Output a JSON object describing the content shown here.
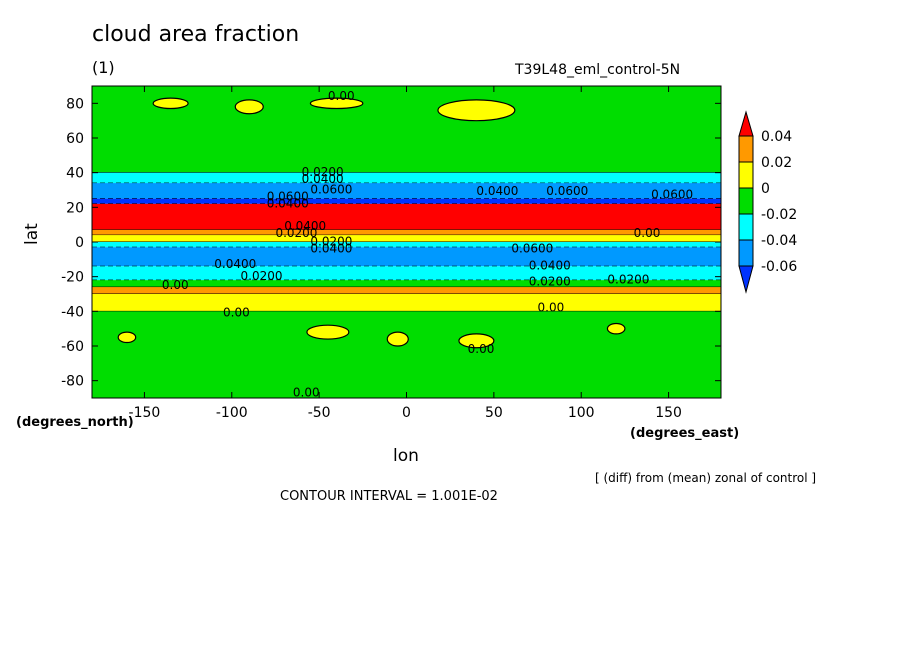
{
  "chart_data": {
    "type": "heatmap",
    "title": "cloud area fraction",
    "subtitle_left": "(1)",
    "subtitle_right": "T39L48_eml_control-5N",
    "xlabel": "lon",
    "ylabel": "lat",
    "x_units": "(degrees_east)",
    "y_units": "(degrees_north)",
    "xlim": [
      -180,
      180
    ],
    "ylim": [
      -90,
      90
    ],
    "x_ticks": [
      -150,
      -100,
      -50,
      0,
      50,
      100,
      150
    ],
    "y_ticks": [
      -80,
      -60,
      -40,
      -20,
      0,
      20,
      40,
      60,
      80
    ],
    "note": "[ (diff) from (mean) zonal of control ]",
    "contour_interval": "CONTOUR INTERVAL = 1.001E-02",
    "colorbar": {
      "levels": [
        "0.04",
        "0.02",
        "0",
        "-0.02",
        "-0.04",
        "-0.06"
      ],
      "colors": [
        "#ff0000",
        "#ff9900",
        "#ffff00",
        "#00dd00",
        "#00ffff",
        "#0099ff",
        "#0033ff"
      ]
    },
    "bands": [
      {
        "lat_from": 90,
        "lat_to": 40,
        "value_class": 0,
        "color": "#00dd00"
      },
      {
        "lat_from": 40,
        "lat_to": 34,
        "value_class": -0.04,
        "color": "#00ffff"
      },
      {
        "lat_from": 34,
        "lat_to": 25,
        "value_class": -0.06,
        "color": "#0099ff"
      },
      {
        "lat_from": 25,
        "lat_to": 22,
        "value_class": -0.08,
        "color": "#0033ff"
      },
      {
        "lat_from": 22,
        "lat_to": 7,
        "value_class": 0.04,
        "color": "#ff0000"
      },
      {
        "lat_from": 7,
        "lat_to": 4,
        "value_class": 0.02,
        "color": "#ff9900"
      },
      {
        "lat_from": 4,
        "lat_to": 0,
        "value_class": 0,
        "color": "#ffff00"
      },
      {
        "lat_from": 0,
        "lat_to": -3,
        "value_class": -0.04,
        "color": "#00ffff"
      },
      {
        "lat_from": -3,
        "lat_to": -14,
        "value_class": -0.06,
        "color": "#0099ff"
      },
      {
        "lat_from": -14,
        "lat_to": -22,
        "value_class": -0.04,
        "color": "#00ffff"
      },
      {
        "lat_from": -22,
        "lat_to": -26,
        "value_class": 0,
        "color": "#00dd00"
      },
      {
        "lat_from": -26,
        "lat_to": -30,
        "value_class": 0.02,
        "color": "#ff9900"
      },
      {
        "lat_from": -30,
        "lat_to": -40,
        "value_class": 0,
        "color": "#ffff00"
      },
      {
        "lat_from": -40,
        "lat_to": -90,
        "value_class": 0,
        "color": "#00dd00"
      }
    ],
    "patches": [
      {
        "lon": -135,
        "lat": 80,
        "rx": 10,
        "ry": 3,
        "color": "#ffff00"
      },
      {
        "lon": -90,
        "lat": 78,
        "rx": 8,
        "ry": 4,
        "color": "#ffff00"
      },
      {
        "lon": -40,
        "lat": 80,
        "rx": 15,
        "ry": 3,
        "color": "#ffff00"
      },
      {
        "lon": 40,
        "lat": 76,
        "rx": 22,
        "ry": 6,
        "color": "#ffff00"
      },
      {
        "lon": -45,
        "lat": -52,
        "rx": 12,
        "ry": 4,
        "color": "#ffff00"
      },
      {
        "lon": -5,
        "lat": -56,
        "rx": 6,
        "ry": 4,
        "color": "#ffff00"
      },
      {
        "lon": 40,
        "lat": -57,
        "rx": 10,
        "ry": 4,
        "color": "#ffff00"
      },
      {
        "lon": -160,
        "lat": -55,
        "rx": 5,
        "ry": 3,
        "color": "#ffff00"
      },
      {
        "lon": 120,
        "lat": -50,
        "rx": 5,
        "ry": 3,
        "color": "#ffff00"
      }
    ],
    "contour_labels": [
      {
        "text": "0.00",
        "lon": -45,
        "lat": 82
      },
      {
        "text": "0.0200",
        "lon": -60,
        "lat": 38
      },
      {
        "text": "0.0400",
        "lon": -60,
        "lat": 34
      },
      {
        "text": "0.0600",
        "lon": -55,
        "lat": 28
      },
      {
        "text": "0.0600",
        "lon": -80,
        "lat": 24
      },
      {
        "text": "0.0400",
        "lon": -80,
        "lat": 20
      },
      {
        "text": "0.0600",
        "lon": 80,
        "lat": 27
      },
      {
        "text": "0.0600",
        "lon": 140,
        "lat": 25
      },
      {
        "text": "0.0400",
        "lon": 40,
        "lat": 27
      },
      {
        "text": "0.0400",
        "lon": -70,
        "lat": 7
      },
      {
        "text": "0.0200",
        "lon": -75,
        "lat": 3
      },
      {
        "text": "0.00",
        "lon": 130,
        "lat": 3
      },
      {
        "text": "0.0200",
        "lon": -55,
        "lat": -2
      },
      {
        "text": "0.0400",
        "lon": -55,
        "lat": -6
      },
      {
        "text": "0.0600",
        "lon": 60,
        "lat": -6
      },
      {
        "text": "0.0400",
        "lon": 70,
        "lat": -16
      },
      {
        "text": "0.0400",
        "lon": -110,
        "lat": -15
      },
      {
        "text": "0.0200",
        "lon": -95,
        "lat": -22
      },
      {
        "text": "0.00",
        "lon": -140,
        "lat": -27
      },
      {
        "text": "0.0200",
        "lon": 70,
        "lat": -25
      },
      {
        "text": "0.0200",
        "lon": 115,
        "lat": -24
      },
      {
        "text": "0.00",
        "lon": -105,
        "lat": -43
      },
      {
        "text": "0.00",
        "lon": 75,
        "lat": -40
      },
      {
        "text": "0.00",
        "lon": 35,
        "lat": -64
      },
      {
        "text": "0.00",
        "lon": -65,
        "lat": -89
      }
    ]
  }
}
